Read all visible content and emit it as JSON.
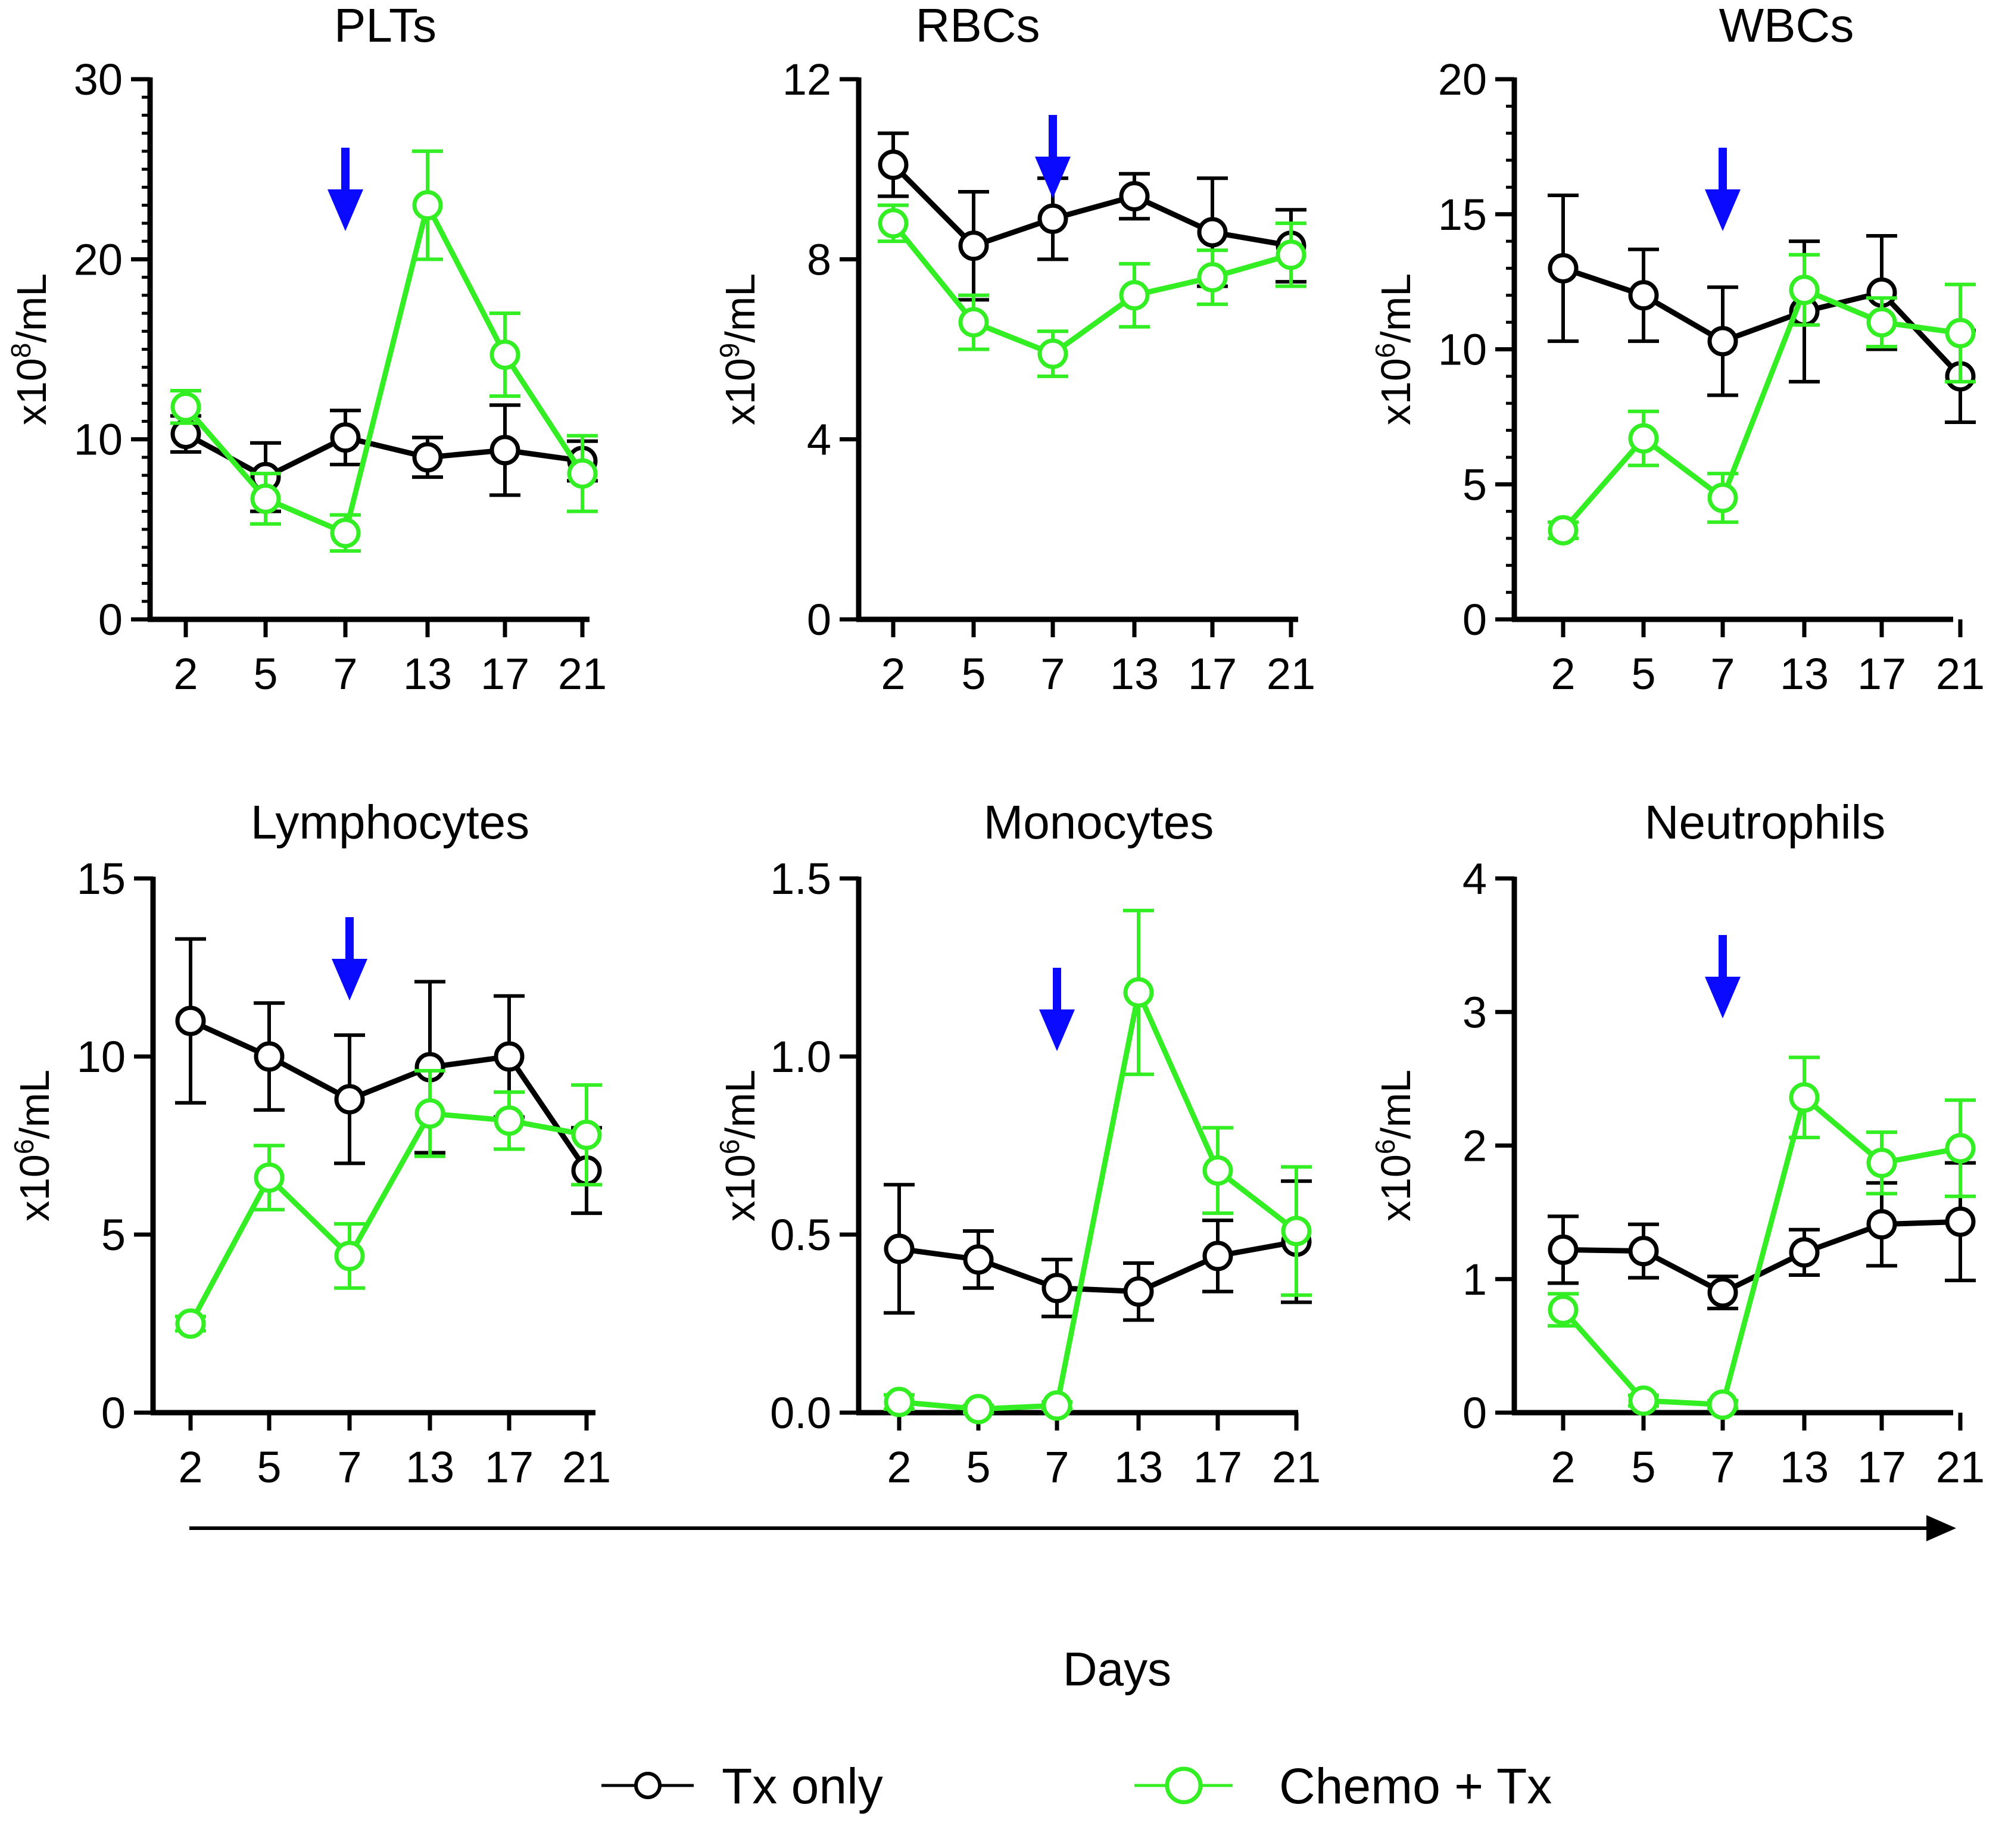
{
  "figure": {
    "x_axis_label": "Days",
    "arrow_color": "#0a0aff",
    "colors": {
      "tx_only": "#000000",
      "chemo_tx": "#33ee22"
    }
  },
  "legend": {
    "items": [
      {
        "key": "tx_only",
        "label": "Tx only"
      },
      {
        "key": "chemo_tx",
        "label": "Chemo + Tx"
      }
    ]
  },
  "chart_data": [
    {
      "type": "line",
      "title": "PLTs",
      "ylabel": {
        "base": "x10",
        "exp": "8",
        "unit": "/mL"
      },
      "categories": [
        "2",
        "5",
        "7",
        "13",
        "17",
        "21"
      ],
      "ylim": [
        0,
        30
      ],
      "yticks": [
        0,
        10,
        20,
        30
      ],
      "ytick_labels": [
        "0",
        "10",
        "20",
        "30"
      ],
      "minor_per_major": 10,
      "arrow_at": "7",
      "series": [
        {
          "name": "Tx only",
          "values": [
            10.3,
            7.9,
            10.1,
            9.0,
            9.4,
            8.8
          ],
          "errors": [
            1.0,
            1.9,
            1.5,
            1.1,
            2.5,
            1.1
          ]
        },
        {
          "name": "Chemo + Tx",
          "values": [
            11.8,
            6.7,
            4.8,
            23.0,
            14.7,
            8.1
          ],
          "errors": [
            0.9,
            1.4,
            1.0,
            3.0,
            2.3,
            2.1
          ]
        }
      ]
    },
    {
      "type": "line",
      "title": "RBCs",
      "ylabel": {
        "base": "x10",
        "exp": "9",
        "unit": "/mL"
      },
      "categories": [
        "2",
        "5",
        "7",
        "13",
        "17",
        "21"
      ],
      "ylim": [
        0,
        12
      ],
      "yticks": [
        0,
        4,
        8,
        12
      ],
      "ytick_labels": [
        "0",
        "4",
        "8",
        "12"
      ],
      "minor_per_major": 0,
      "arrow_at": "7",
      "series": [
        {
          "name": "Tx only",
          "values": [
            10.1,
            8.3,
            8.9,
            9.4,
            8.6,
            8.3
          ],
          "errors": [
            0.7,
            1.2,
            0.9,
            0.5,
            1.2,
            0.8
          ]
        },
        {
          "name": "Chemo + Tx",
          "values": [
            8.8,
            6.6,
            5.9,
            7.2,
            7.6,
            8.1
          ],
          "errors": [
            0.4,
            0.6,
            0.5,
            0.7,
            0.6,
            0.7
          ]
        }
      ]
    },
    {
      "type": "line",
      "title": "WBCs",
      "ylabel": {
        "base": "x10",
        "exp": "6",
        "unit": "/mL"
      },
      "categories": [
        "2",
        "5",
        "7",
        "13",
        "17",
        "21"
      ],
      "ylim": [
        0,
        20
      ],
      "yticks": [
        0,
        5,
        10,
        15,
        20
      ],
      "ytick_labels": [
        "0",
        "5",
        "10",
        "15",
        "20"
      ],
      "minor_per_major": 5,
      "arrow_at": "7",
      "series": [
        {
          "name": "Tx only",
          "values": [
            13.0,
            12.0,
            10.3,
            11.4,
            12.1,
            9.0
          ],
          "errors": [
            2.7,
            1.7,
            2.0,
            2.6,
            2.1,
            1.7
          ]
        },
        {
          "name": "Chemo + Tx",
          "values": [
            3.3,
            6.7,
            4.5,
            12.2,
            11.0,
            10.6
          ],
          "errors": [
            0.3,
            1.0,
            0.9,
            1.3,
            0.9,
            1.8
          ]
        }
      ]
    },
    {
      "type": "line",
      "title": "Lymphocytes",
      "ylabel": {
        "base": "x10",
        "exp": "6",
        "unit": "/mL"
      },
      "categories": [
        "2",
        "5",
        "7",
        "13",
        "17",
        "21"
      ],
      "ylim": [
        0,
        15
      ],
      "yticks": [
        0,
        5,
        10,
        15
      ],
      "ytick_labels": [
        "0",
        "5",
        "10",
        "15"
      ],
      "minor_per_major": 0,
      "arrow_at": "7",
      "series": [
        {
          "name": "Tx only",
          "values": [
            11.0,
            10.0,
            8.8,
            9.7,
            10.0,
            6.8
          ],
          "errors": [
            2.3,
            1.5,
            1.8,
            2.4,
            1.7,
            1.2
          ]
        },
        {
          "name": "Chemo + Tx",
          "values": [
            2.5,
            6.6,
            4.4,
            8.4,
            8.2,
            7.8
          ],
          "errors": [
            0.2,
            0.9,
            0.9,
            1.2,
            0.8,
            1.4
          ]
        }
      ]
    },
    {
      "type": "line",
      "title": "Monocytes",
      "ylabel": {
        "base": "x10",
        "exp": "6",
        "unit": "/mL"
      },
      "categories": [
        "2",
        "5",
        "7",
        "13",
        "17",
        "21"
      ],
      "ylim": [
        0,
        1.5
      ],
      "yticks": [
        0,
        0.5,
        1.0,
        1.5
      ],
      "ytick_labels": [
        "0.0",
        "0.5",
        "1.0",
        "1.5"
      ],
      "minor_per_major": 0,
      "arrow_at": "7",
      "series": [
        {
          "name": "Tx only",
          "values": [
            0.46,
            0.43,
            0.35,
            0.34,
            0.44,
            0.48
          ],
          "errors": [
            0.18,
            0.08,
            0.08,
            0.08,
            0.1,
            0.17
          ]
        },
        {
          "name": "Chemo + Tx",
          "values": [
            0.03,
            0.01,
            0.02,
            1.18,
            0.68,
            0.51
          ],
          "errors": [
            0.02,
            0.01,
            0.01,
            0.23,
            0.12,
            0.18
          ]
        }
      ]
    },
    {
      "type": "line",
      "title": "Neutrophils",
      "ylabel": {
        "base": "x10",
        "exp": "6",
        "unit": "/mL"
      },
      "categories": [
        "2",
        "5",
        "7",
        "13",
        "17",
        "21"
      ],
      "ylim": [
        0,
        4
      ],
      "yticks": [
        0,
        1,
        2,
        3,
        4
      ],
      "ytick_labels": [
        "0",
        "1",
        "2",
        "3",
        "4"
      ],
      "minor_per_major": 0,
      "arrow_at": "7",
      "series": [
        {
          "name": "Tx only",
          "values": [
            1.22,
            1.21,
            0.9,
            1.2,
            1.41,
            1.43
          ],
          "errors": [
            0.25,
            0.2,
            0.12,
            0.17,
            0.31,
            0.44
          ]
        },
        {
          "name": "Chemo + Tx",
          "values": [
            0.77,
            0.09,
            0.06,
            2.36,
            1.87,
            1.98
          ],
          "errors": [
            0.12,
            0.04,
            0.03,
            0.3,
            0.23,
            0.36
          ]
        }
      ]
    }
  ]
}
